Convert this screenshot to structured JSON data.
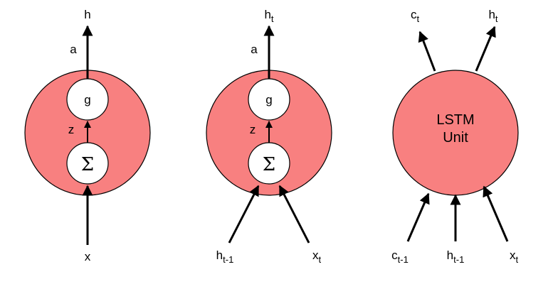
{
  "colors": {
    "unit_fill": "#F88080",
    "node_fill": "#FFFFFF",
    "stroke": "#000000"
  },
  "diagram1": {
    "output": "h",
    "activation_edge": "a",
    "nonlinearity": "g",
    "preactivation_edge": "z",
    "sum": "Σ",
    "input": "x"
  },
  "diagram2": {
    "output": {
      "base": "h",
      "sub": "t"
    },
    "activation_edge": "a",
    "nonlinearity": "g",
    "preactivation_edge": "z",
    "sum": "Σ",
    "input_prev_hidden": {
      "base": "h",
      "sub": "t-1"
    },
    "input_x": {
      "base": "x",
      "sub": "t"
    }
  },
  "diagram3": {
    "unit_line1": "LSTM",
    "unit_line2": "Unit",
    "output_c": {
      "base": "c",
      "sub": "t"
    },
    "output_h": {
      "base": "h",
      "sub": "t"
    },
    "input_c": {
      "base": "c",
      "sub": "t-1"
    },
    "input_h": {
      "base": "h",
      "sub": "t-1"
    },
    "input_x": {
      "base": "x",
      "sub": "t"
    }
  }
}
